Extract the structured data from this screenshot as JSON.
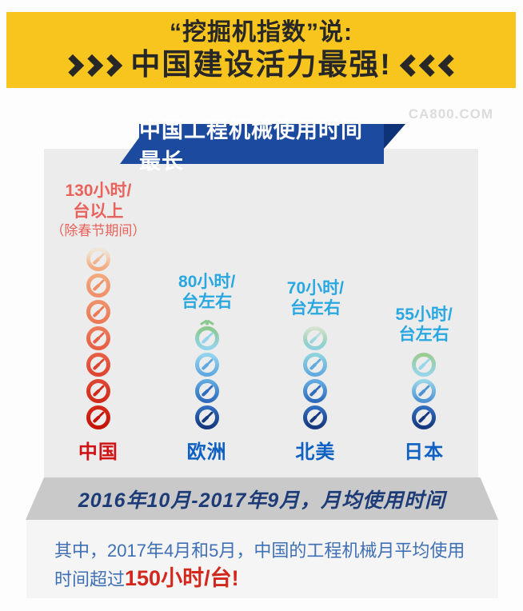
{
  "header": {
    "line1": "“挖掘机指数”说:",
    "line2": "中国建设活力最强!",
    "chevrons_right_icon": "»»»",
    "chevrons_left_icon": "«««",
    "background_color": "#f7c51e",
    "text_color": "#272727"
  },
  "watermark": "CA800.COM",
  "ribbon": {
    "title": "中国工程机械使用时间最长",
    "background_color": "#1b4a9e",
    "fold_color": "#0e3377"
  },
  "chart_data": {
    "type": "bar",
    "subtype": "pictograph-clock-stacks",
    "title": "中国工程机械使用时间最长",
    "categories": [
      "中国",
      "欧洲",
      "北美",
      "日本"
    ],
    "values": [
      130,
      80,
      70,
      55
    ],
    "unit": "小时/台",
    "value_labels": [
      "130小时/台以上",
      "80小时/台左右",
      "70小时/台左右",
      "55小时/台左右"
    ],
    "period_label": "2016年10月-2017年9月，月均使用时间",
    "legend_position": "none",
    "grid": false,
    "columns": [
      {
        "name": "中国",
        "name_color": "#d01215",
        "label_lines": [
          "130小时/",
          "台以上"
        ],
        "note": "（除春节期间）",
        "label_color": "#e9625b",
        "top_variant": "fade",
        "clocks": [
          [
            "#f8d7ae",
            "#f2a97e"
          ],
          [
            "#f2a97e",
            "#ef9068"
          ],
          [
            "#ef9068",
            "#ec7a57"
          ],
          [
            "#ec7a57",
            "#e66046"
          ],
          [
            "#e66046",
            "#dd4532"
          ],
          [
            "#dd4532",
            "#d22a1a"
          ],
          [
            "#d22a1a",
            "#c51309"
          ]
        ]
      },
      {
        "name": "欧洲",
        "name_color": "#0e61c2",
        "label_lines": [
          "80小时/",
          "台左右"
        ],
        "note": "",
        "label_color": "#29a7e1",
        "top_variant": "crown",
        "clocks": [
          [
            "#8cc98f",
            "#93d4ec"
          ],
          [
            "#93d4ec",
            "#5fa9e0"
          ],
          [
            "#5fa9e0",
            "#2f6cbd"
          ],
          [
            "#2f6cbd",
            "#16387f"
          ]
        ]
      },
      {
        "name": "北美",
        "name_color": "#0e61c2",
        "label_lines": [
          "70小时/",
          "台左右"
        ],
        "note": "",
        "label_color": "#29a7e1",
        "top_variant": "fade",
        "clocks": [
          [
            "#95ca8c",
            "#8fd2de"
          ],
          [
            "#8fd2de",
            "#62abe0"
          ],
          [
            "#62abe0",
            "#2f6cbd"
          ],
          [
            "#2f6cbd",
            "#16387f"
          ]
        ]
      },
      {
        "name": "日本",
        "name_color": "#0e61c2",
        "label_lines": [
          "55小时/",
          "台左右"
        ],
        "note": "",
        "label_color": "#29a7e1",
        "top_variant": "plain",
        "clocks": [
          [
            "#9bcc92",
            "#97d5e8"
          ],
          [
            "#97d5e8",
            "#4d92d2"
          ],
          [
            "#2f6cbd",
            "#16387f"
          ]
        ]
      }
    ]
  },
  "period_banner": {
    "text": "2016年10月-2017年9月，月均使用时间",
    "background_color": "#c9c9c9",
    "text_color": "#1c3b77"
  },
  "footer": {
    "prefix": "其中，2017年4月和5月，中国的工程机械月平均使用时间超过",
    "highlight": "150小时/台!",
    "text_color": "#3f6fb5",
    "highlight_color": "#d1271c"
  }
}
